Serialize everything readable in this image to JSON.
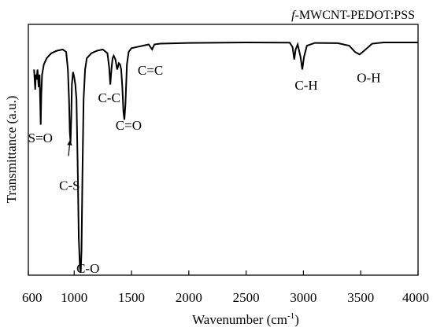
{
  "chart_data": {
    "type": "line",
    "title": "",
    "legend": {
      "prefix": "f",
      "text": "-MWCNT-PEDOT:PSS",
      "placement": "top-right"
    },
    "xlabel": "Wavenumber (cm",
    "xlabel_sup": "-1",
    "xlabel_end": ")",
    "ylabel": "Transmittance (a.u.)",
    "xlim": [
      600,
      4000
    ],
    "ylim": [
      0,
      100
    ],
    "x_ticks": [
      {
        "value": 600,
        "label": "600"
      },
      {
        "value": 1000,
        "label": "1000"
      },
      {
        "value": 1500,
        "label": "1500"
      },
      {
        "value": 2000,
        "label": "2000"
      },
      {
        "value": 2500,
        "label": "2500"
      },
      {
        "value": 3000,
        "label": "3000"
      },
      {
        "value": 3500,
        "label": "3500"
      },
      {
        "value": 4000,
        "label": "4000"
      }
    ],
    "y_ticks_shown": false,
    "grid": false,
    "series": [
      {
        "points": [
          [
            650,
            82
          ],
          [
            660,
            74
          ],
          [
            665,
            80
          ],
          [
            672,
            78
          ],
          [
            680,
            82
          ],
          [
            690,
            75
          ],
          [
            698,
            80
          ],
          [
            703,
            70
          ],
          [
            708,
            60
          ],
          [
            713,
            72
          ],
          [
            720,
            80
          ],
          [
            735,
            84
          ],
          [
            760,
            86.5
          ],
          [
            800,
            88.5
          ],
          [
            850,
            89.5
          ],
          [
            900,
            90
          ],
          [
            930,
            89
          ],
          [
            945,
            82
          ],
          [
            955,
            70
          ],
          [
            962,
            57
          ],
          [
            968,
            53
          ],
          [
            974,
            62
          ],
          [
            980,
            76
          ],
          [
            990,
            81
          ],
          [
            1000,
            79
          ],
          [
            1010,
            76
          ],
          [
            1020,
            70
          ],
          [
            1030,
            45
          ],
          [
            1040,
            15
          ],
          [
            1050,
            3
          ],
          [
            1057,
            1
          ],
          [
            1064,
            10
          ],
          [
            1072,
            40
          ],
          [
            1082,
            70
          ],
          [
            1095,
            82
          ],
          [
            1110,
            86.5
          ],
          [
            1150,
            88.5
          ],
          [
            1200,
            89.5
          ],
          [
            1250,
            90
          ],
          [
            1290,
            88.5
          ],
          [
            1305,
            83
          ],
          [
            1315,
            76
          ],
          [
            1325,
            82
          ],
          [
            1335,
            86.5
          ],
          [
            1345,
            87.5
          ],
          [
            1360,
            86
          ],
          [
            1375,
            82
          ],
          [
            1390,
            84.5
          ],
          [
            1400,
            84
          ],
          [
            1410,
            82
          ],
          [
            1420,
            75
          ],
          [
            1430,
            65
          ],
          [
            1438,
            62
          ],
          [
            1447,
            68
          ],
          [
            1460,
            84
          ],
          [
            1475,
            89
          ],
          [
            1500,
            90.5
          ],
          [
            1550,
            91
          ],
          [
            1600,
            91.5
          ],
          [
            1650,
            92
          ],
          [
            1680,
            90
          ],
          [
            1700,
            92
          ],
          [
            1750,
            92.3
          ],
          [
            2000,
            92.6
          ],
          [
            2500,
            92.8
          ],
          [
            2880,
            92.7
          ],
          [
            2905,
            91
          ],
          [
            2920,
            86
          ],
          [
            2932,
            90
          ],
          [
            2950,
            92
          ],
          [
            2975,
            87
          ],
          [
            2990,
            82
          ],
          [
            3005,
            87
          ],
          [
            3030,
            91.5
          ],
          [
            3100,
            92.6
          ],
          [
            3300,
            92.5
          ],
          [
            3400,
            91.5
          ],
          [
            3450,
            89
          ],
          [
            3490,
            88
          ],
          [
            3530,
            89.5
          ],
          [
            3600,
            92.3
          ],
          [
            3700,
            92.8
          ],
          [
            4000,
            92.8
          ]
        ]
      }
    ],
    "annotations": [
      {
        "label": "S=O",
        "x": 705,
        "y": 53
      },
      {
        "label": "C-S",
        "x": 960,
        "y": 34
      },
      {
        "label": "C-O",
        "x": 1120,
        "y": 1
      },
      {
        "label": "C-C",
        "x": 1305,
        "y": 69
      },
      {
        "label": "C=O",
        "x": 1475,
        "y": 58
      },
      {
        "label": "C=C",
        "x": 1665,
        "y": 80
      },
      {
        "label": "C-H",
        "x": 3025,
        "y": 74
      },
      {
        "label": "O-H",
        "x": 3570,
        "y": 77
      }
    ],
    "arrow": {
      "from": [
        950,
        47.5
      ],
      "to": [
        965,
        54
      ]
    }
  }
}
